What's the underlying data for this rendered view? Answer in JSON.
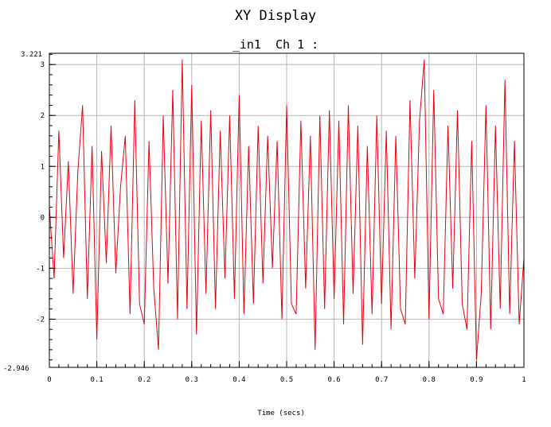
{
  "chart_data": {
    "type": "line",
    "title": "XY Display",
    "subtitle": "_in1  Ch 1 :",
    "xlabel": "Time (secs)",
    "ylabel": "",
    "xlim": [
      0,
      1
    ],
    "ylim": [
      -2.946,
      3.221
    ],
    "x_ticks": [
      "0",
      "0.1",
      "0.2",
      "0.3",
      "0.4",
      "0.5",
      "0.6",
      "0.7",
      "0.8",
      "0.9",
      "1"
    ],
    "y_ticks": [
      "-2",
      "-1",
      "0",
      "1",
      "2",
      "3"
    ],
    "y_min_label": "-2.946",
    "y_max_label": "3.221",
    "grid": true,
    "series": [
      {
        "color": "#e8000b",
        "x": [
          0.0,
          0.01,
          0.02,
          0.03,
          0.04,
          0.05,
          0.06,
          0.07,
          0.08,
          0.09,
          0.1,
          0.11,
          0.12,
          0.13,
          0.14,
          0.15,
          0.16,
          0.17,
          0.18,
          0.19,
          0.2,
          0.21,
          0.22,
          0.23,
          0.24,
          0.25,
          0.26,
          0.27,
          0.28,
          0.29,
          0.3,
          0.31,
          0.32,
          0.33,
          0.34,
          0.35,
          0.36,
          0.37,
          0.38,
          0.39,
          0.4,
          0.41,
          0.42,
          0.43,
          0.44,
          0.45,
          0.46,
          0.47,
          0.48,
          0.49,
          0.5,
          0.51,
          0.52,
          0.53,
          0.54,
          0.55,
          0.56,
          0.57,
          0.58,
          0.59,
          0.6,
          0.61,
          0.62,
          0.63,
          0.64,
          0.65,
          0.66,
          0.67,
          0.68,
          0.69,
          0.7,
          0.71,
          0.72,
          0.73,
          0.74,
          0.75,
          0.76,
          0.77,
          0.78,
          0.79,
          0.8,
          0.81,
          0.82,
          0.83,
          0.84,
          0.85,
          0.86,
          0.87,
          0.88,
          0.89,
          0.9,
          0.91,
          0.92,
          0.93,
          0.94,
          0.95,
          0.96,
          0.97,
          0.98,
          0.99,
          1.0
        ],
        "values": [
          0.2,
          -1.2,
          1.7,
          -0.8,
          1.1,
          -1.5,
          0.9,
          2.2,
          -1.6,
          1.4,
          -2.4,
          1.3,
          -0.9,
          1.8,
          -1.1,
          0.6,
          1.6,
          -1.9,
          2.3,
          -1.7,
          -2.1,
          1.5,
          -1.4,
          -2.6,
          2.0,
          -1.3,
          2.5,
          -2.0,
          3.1,
          -1.8,
          2.6,
          -2.3,
          1.9,
          -1.5,
          2.1,
          -1.8,
          1.7,
          -1.2,
          2.0,
          -1.6,
          2.4,
          -1.9,
          1.4,
          -1.7,
          1.8,
          -1.3,
          1.6,
          -1.0,
          1.5,
          -2.0,
          2.2,
          -1.7,
          -1.9,
          1.9,
          -1.4,
          1.6,
          -2.6,
          2.0,
          -1.8,
          2.1,
          -1.6,
          1.9,
          -2.1,
          2.2,
          -1.5,
          1.8,
          -2.5,
          1.4,
          -1.9,
          2.0,
          -1.7,
          1.7,
          -2.2,
          1.6,
          -1.8,
          -2.1,
          2.3,
          -1.2,
          1.9,
          3.1,
          -2.0,
          2.5,
          -1.6,
          -1.9,
          1.8,
          -1.4,
          2.1,
          -1.7,
          -2.2,
          1.5,
          -2.8,
          -1.5,
          2.2,
          -2.2,
          1.8,
          -1.8,
          2.7,
          -1.9,
          1.5,
          -2.1,
          -0.8
        ]
      }
    ]
  }
}
